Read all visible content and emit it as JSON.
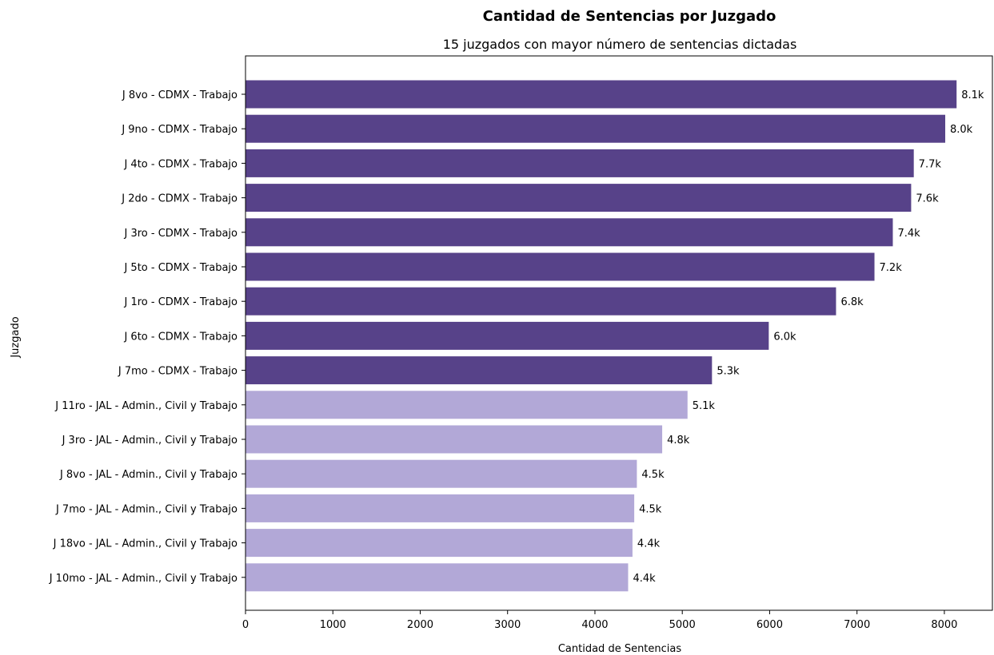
{
  "chart_data": {
    "type": "bar",
    "orientation": "horizontal",
    "title": "Cantidad de Sentencias por Juzgado",
    "subtitle": "15 juzgados con mayor número de sentencias dictadas",
    "xlabel": "Cantidad de Sentencias",
    "ylabel": "Juzgado",
    "xlim": [
      0,
      8550
    ],
    "xticks": [
      0,
      1000,
      2000,
      3000,
      4000,
      5000,
      6000,
      7000,
      8000
    ],
    "grid": false,
    "colors": {
      "dark": "#574289",
      "light": "#b2a8d7"
    },
    "categories": [
      "J 8vo - CDMX - Trabajo",
      "J 9no - CDMX - Trabajo",
      "J 4to - CDMX - Trabajo",
      "J 2do - CDMX - Trabajo",
      "J 3ro - CDMX - Trabajo",
      "J 5to - CDMX - Trabajo",
      "J 1ro - CDMX - Trabajo",
      "J 6to - CDMX - Trabajo",
      "J 7mo - CDMX - Trabajo",
      "J 11ro - JAL - Admin., Civil y Trabajo",
      "J 3ro - JAL - Admin., Civil y Trabajo",
      "J 8vo - JAL - Admin., Civil y Trabajo",
      "J 7mo - JAL - Admin., Civil y Trabajo",
      "J 18vo - JAL - Admin., Civil y Trabajo",
      "J 10mo - JAL - Admin., Civil y Trabajo"
    ],
    "values": [
      8140,
      8010,
      7650,
      7620,
      7410,
      7200,
      6760,
      5990,
      5340,
      5060,
      4770,
      4480,
      4450,
      4430,
      4380
    ],
    "data_labels": [
      "8.1k",
      "8.0k",
      "7.7k",
      "7.6k",
      "7.4k",
      "7.2k",
      "6.8k",
      "6.0k",
      "5.3k",
      "5.1k",
      "4.8k",
      "4.5k",
      "4.5k",
      "4.4k",
      "4.4k"
    ],
    "color_groups": [
      "dark",
      "dark",
      "dark",
      "dark",
      "dark",
      "dark",
      "dark",
      "dark",
      "dark",
      "light",
      "light",
      "light",
      "light",
      "light",
      "light"
    ]
  }
}
